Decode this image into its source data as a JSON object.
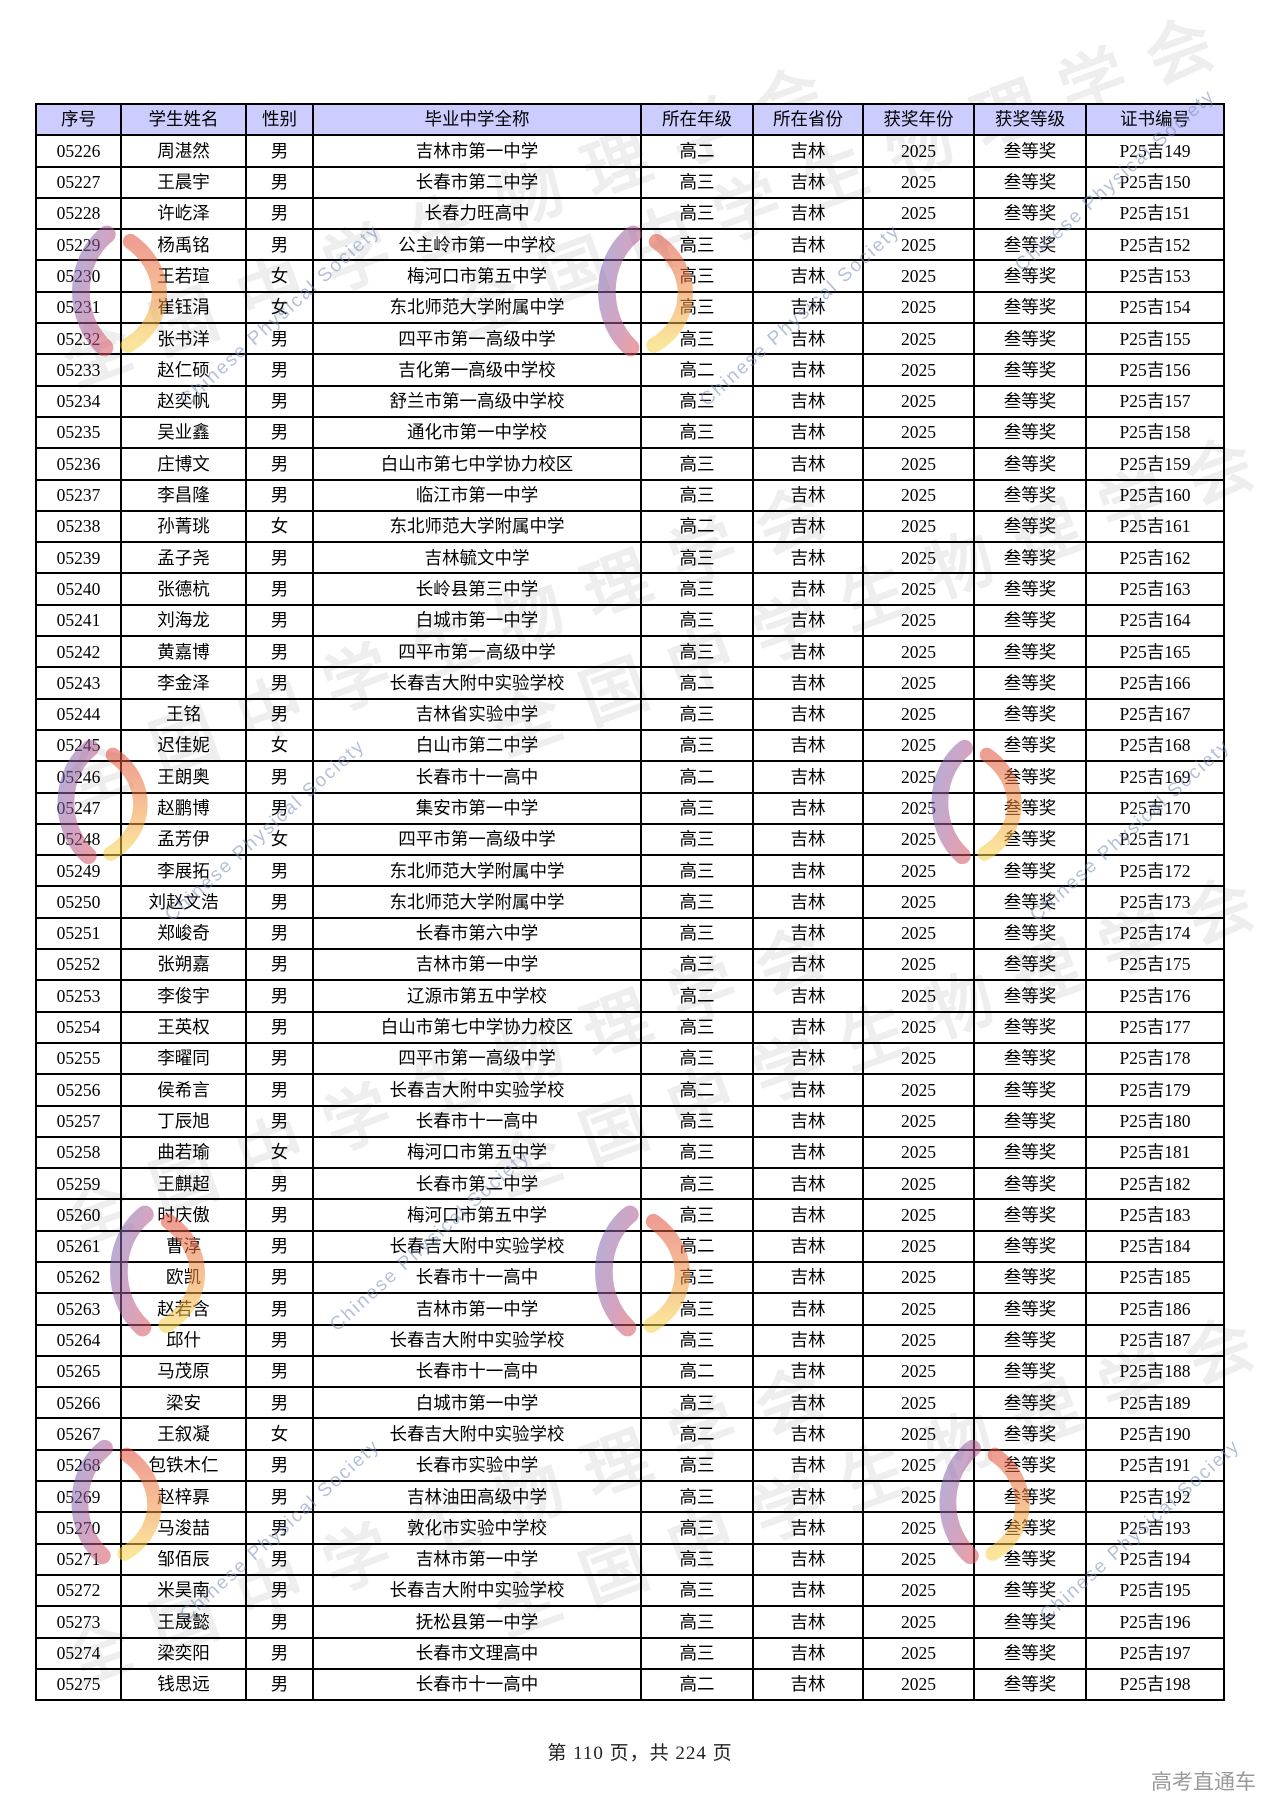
{
  "table": {
    "column_keys": [
      "index",
      "name",
      "gender",
      "school",
      "grade",
      "province",
      "year",
      "award",
      "certificate"
    ],
    "headers": [
      "序号",
      "学生姓名",
      "性别",
      "毕业中学全称",
      "所在年级",
      "所在省份",
      "获奖年份",
      "获奖等级",
      "证书编号"
    ],
    "rows": [
      [
        "05226",
        "周湛然",
        "男",
        "吉林市第一中学",
        "高二",
        "吉林",
        "2025",
        "叁等奖",
        "P25吉149"
      ],
      [
        "05227",
        "王晨宇",
        "男",
        "长春市第二中学",
        "高三",
        "吉林",
        "2025",
        "叁等奖",
        "P25吉150"
      ],
      [
        "05228",
        "许屹泽",
        "男",
        "长春力旺高中",
        "高三",
        "吉林",
        "2025",
        "叁等奖",
        "P25吉151"
      ],
      [
        "05229",
        "杨禹铭",
        "男",
        "公主岭市第一中学校",
        "高三",
        "吉林",
        "2025",
        "叁等奖",
        "P25吉152"
      ],
      [
        "05230",
        "王若瑄",
        "女",
        "梅河口市第五中学",
        "高三",
        "吉林",
        "2025",
        "叁等奖",
        "P25吉153"
      ],
      [
        "05231",
        "崔钰涓",
        "女",
        "东北师范大学附属中学",
        "高三",
        "吉林",
        "2025",
        "叁等奖",
        "P25吉154"
      ],
      [
        "05232",
        "张书洋",
        "男",
        "四平市第一高级中学",
        "高三",
        "吉林",
        "2025",
        "叁等奖",
        "P25吉155"
      ],
      [
        "05233",
        "赵仁硕",
        "男",
        "吉化第一高级中学校",
        "高二",
        "吉林",
        "2025",
        "叁等奖",
        "P25吉156"
      ],
      [
        "05234",
        "赵奕帆",
        "男",
        "舒兰市第一高级中学校",
        "高三",
        "吉林",
        "2025",
        "叁等奖",
        "P25吉157"
      ],
      [
        "05235",
        "吴业鑫",
        "男",
        "通化市第一中学校",
        "高三",
        "吉林",
        "2025",
        "叁等奖",
        "P25吉158"
      ],
      [
        "05236",
        "庄博文",
        "男",
        "白山市第七中学协力校区",
        "高三",
        "吉林",
        "2025",
        "叁等奖",
        "P25吉159"
      ],
      [
        "05237",
        "李昌隆",
        "男",
        "临江市第一中学",
        "高三",
        "吉林",
        "2025",
        "叁等奖",
        "P25吉160"
      ],
      [
        "05238",
        "孙菁珧",
        "女",
        "东北师范大学附属中学",
        "高二",
        "吉林",
        "2025",
        "叁等奖",
        "P25吉161"
      ],
      [
        "05239",
        "孟子尧",
        "男",
        "吉林毓文中学",
        "高三",
        "吉林",
        "2025",
        "叁等奖",
        "P25吉162"
      ],
      [
        "05240",
        "张德杭",
        "男",
        "长岭县第三中学",
        "高三",
        "吉林",
        "2025",
        "叁等奖",
        "P25吉163"
      ],
      [
        "05241",
        "刘海龙",
        "男",
        "白城市第一中学",
        "高三",
        "吉林",
        "2025",
        "叁等奖",
        "P25吉164"
      ],
      [
        "05242",
        "黄嘉博",
        "男",
        "四平市第一高级中学",
        "高三",
        "吉林",
        "2025",
        "叁等奖",
        "P25吉165"
      ],
      [
        "05243",
        "李金泽",
        "男",
        "长春吉大附中实验学校",
        "高二",
        "吉林",
        "2025",
        "叁等奖",
        "P25吉166"
      ],
      [
        "05244",
        "王铭",
        "男",
        "吉林省实验中学",
        "高三",
        "吉林",
        "2025",
        "叁等奖",
        "P25吉167"
      ],
      [
        "05245",
        "迟佳妮",
        "女",
        "白山市第二中学",
        "高三",
        "吉林",
        "2025",
        "叁等奖",
        "P25吉168"
      ],
      [
        "05246",
        "王朗奥",
        "男",
        "长春市十一高中",
        "高二",
        "吉林",
        "2025",
        "叁等奖",
        "P25吉169"
      ],
      [
        "05247",
        "赵鹏博",
        "男",
        "集安市第一中学",
        "高三",
        "吉林",
        "2025",
        "叁等奖",
        "P25吉170"
      ],
      [
        "05248",
        "孟芳伊",
        "女",
        "四平市第一高级中学",
        "高三",
        "吉林",
        "2025",
        "叁等奖",
        "P25吉171"
      ],
      [
        "05249",
        "李展拓",
        "男",
        "东北师范大学附属中学",
        "高三",
        "吉林",
        "2025",
        "叁等奖",
        "P25吉172"
      ],
      [
        "05250",
        "刘赵文浩",
        "男",
        "东北师范大学附属中学",
        "高三",
        "吉林",
        "2025",
        "叁等奖",
        "P25吉173"
      ],
      [
        "05251",
        "郑峻奇",
        "男",
        "长春市第六中学",
        "高三",
        "吉林",
        "2025",
        "叁等奖",
        "P25吉174"
      ],
      [
        "05252",
        "张朔嘉",
        "男",
        "吉林市第一中学",
        "高三",
        "吉林",
        "2025",
        "叁等奖",
        "P25吉175"
      ],
      [
        "05253",
        "李俊宇",
        "男",
        "辽源市第五中学校",
        "高二",
        "吉林",
        "2025",
        "叁等奖",
        "P25吉176"
      ],
      [
        "05254",
        "王英权",
        "男",
        "白山市第七中学协力校区",
        "高三",
        "吉林",
        "2025",
        "叁等奖",
        "P25吉177"
      ],
      [
        "05255",
        "李曜同",
        "男",
        "四平市第一高级中学",
        "高三",
        "吉林",
        "2025",
        "叁等奖",
        "P25吉178"
      ],
      [
        "05256",
        "侯希言",
        "男",
        "长春吉大附中实验学校",
        "高二",
        "吉林",
        "2025",
        "叁等奖",
        "P25吉179"
      ],
      [
        "05257",
        "丁辰旭",
        "男",
        "长春市十一高中",
        "高三",
        "吉林",
        "2025",
        "叁等奖",
        "P25吉180"
      ],
      [
        "05258",
        "曲若瑜",
        "女",
        "梅河口市第五中学",
        "高三",
        "吉林",
        "2025",
        "叁等奖",
        "P25吉181"
      ],
      [
        "05259",
        "王麒超",
        "男",
        "长春市第二中学",
        "高三",
        "吉林",
        "2025",
        "叁等奖",
        "P25吉182"
      ],
      [
        "05260",
        "时庆傲",
        "男",
        "梅河口市第五中学",
        "高三",
        "吉林",
        "2025",
        "叁等奖",
        "P25吉183"
      ],
      [
        "05261",
        "曹淳",
        "男",
        "长春吉大附中实验学校",
        "高二",
        "吉林",
        "2025",
        "叁等奖",
        "P25吉184"
      ],
      [
        "05262",
        "欧凯",
        "男",
        "长春市十一高中",
        "高三",
        "吉林",
        "2025",
        "叁等奖",
        "P25吉185"
      ],
      [
        "05263",
        "赵若含",
        "男",
        "吉林市第一中学",
        "高三",
        "吉林",
        "2025",
        "叁等奖",
        "P25吉186"
      ],
      [
        "05264",
        "邱什",
        "男",
        "长春吉大附中实验学校",
        "高三",
        "吉林",
        "2025",
        "叁等奖",
        "P25吉187"
      ],
      [
        "05265",
        "马茂原",
        "男",
        "长春市十一高中",
        "高二",
        "吉林",
        "2025",
        "叁等奖",
        "P25吉188"
      ],
      [
        "05266",
        "梁安",
        "男",
        "白城市第一中学",
        "高三",
        "吉林",
        "2025",
        "叁等奖",
        "P25吉189"
      ],
      [
        "05267",
        "王叙凝",
        "女",
        "长春吉大附中实验学校",
        "高二",
        "吉林",
        "2025",
        "叁等奖",
        "P25吉190"
      ],
      [
        "05268",
        "包铁木仁",
        "男",
        "长春市实验中学",
        "高三",
        "吉林",
        "2025",
        "叁等奖",
        "P25吉191"
      ],
      [
        "05269",
        "赵梓奡",
        "男",
        "吉林油田高级中学",
        "高三",
        "吉林",
        "2025",
        "叁等奖",
        "P25吉192"
      ],
      [
        "05270",
        "马浚喆",
        "男",
        "敦化市实验中学校",
        "高三",
        "吉林",
        "2025",
        "叁等奖",
        "P25吉193"
      ],
      [
        "05271",
        "邹佰辰",
        "男",
        "吉林市第一中学",
        "高三",
        "吉林",
        "2025",
        "叁等奖",
        "P25吉194"
      ],
      [
        "05272",
        "米昊南",
        "男",
        "长春吉大附中实验学校",
        "高三",
        "吉林",
        "2025",
        "叁等奖",
        "P25吉195"
      ],
      [
        "05273",
        "王晟懿",
        "男",
        "抚松县第一中学",
        "高三",
        "吉林",
        "2025",
        "叁等奖",
        "P25吉196"
      ],
      [
        "05274",
        "梁奕阳",
        "男",
        "长春市文理高中",
        "高三",
        "吉林",
        "2025",
        "叁等奖",
        "P25吉197"
      ],
      [
        "05275",
        "钱思远",
        "男",
        "长春市十一高中",
        "高二",
        "吉林",
        "2025",
        "叁等奖",
        "P25吉198"
      ]
    ]
  },
  "footer": {
    "page_text": "第 110 页，共 224 页",
    "brand": "高考直通车"
  },
  "watermark": {
    "cn_text": "全国中学生物理学会",
    "en_text": "Chinese Physical Society"
  },
  "colors": {
    "header_bg": "#ccccff",
    "border": "#000000",
    "brand_text": "#9a9a9a"
  }
}
